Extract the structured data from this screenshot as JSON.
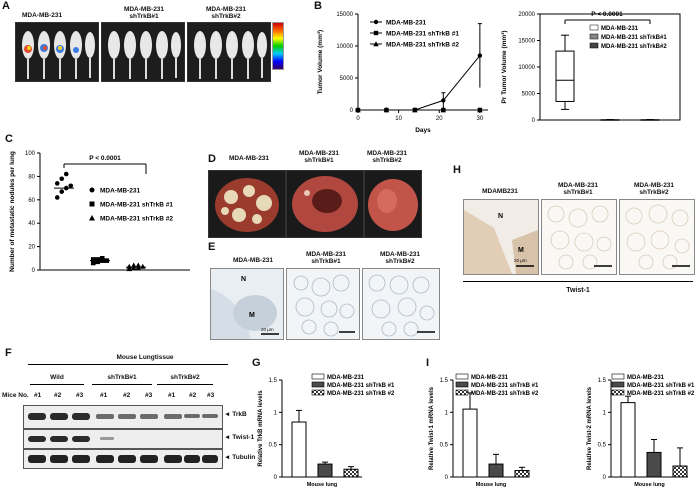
{
  "panels": {
    "A": {
      "letter": "A",
      "groups": [
        "MDA-MB-231",
        "MDA-MB-231 shTrkB#1",
        "MDA-MB-231 shTrkB#2"
      ]
    },
    "B": {
      "letter": "B"
    },
    "C": {
      "letter": "C"
    },
    "D": {
      "letter": "D",
      "groups": [
        "MDA-MB-231",
        "MDA-MB-231\nshTrkB#1",
        "MDA-MB-231\nshTrkB#2"
      ]
    },
    "E": {
      "letter": "E",
      "groups": [
        "MDA-MB-231",
        "MDA-MB-231\nshTrkB#1",
        "MDA-MB-231\nshTrkB#2"
      ],
      "labels": {
        "N": "N",
        "M": "M",
        "scale": "20 μm"
      }
    },
    "F": {
      "letter": "F",
      "title": "Mouse Lungtissue",
      "mice_label": "Mice No.",
      "groups": [
        "Wild",
        "shTrkB#1",
        "shTrkB#2"
      ],
      "mice": [
        "#1",
        "#2",
        "#3",
        "#1",
        "#2",
        "#3",
        "#1",
        "#2",
        "#3"
      ],
      "bands": [
        "TrkB",
        "Twist-1",
        "Tubulin"
      ]
    },
    "G": {
      "letter": "G"
    },
    "H": {
      "letter": "H",
      "groups": [
        "MDAMB231",
        "MDA-MB-231\nshTrkB#1",
        "MDA-MB-231\nshTrkB#2"
      ],
      "labels": {
        "N": "N",
        "M": "M",
        "scale": "20 μm"
      },
      "caption": "Twist-1"
    },
    "I": {
      "letter": "I"
    }
  },
  "chart_data": [
    {
      "id": "B-left",
      "type": "line",
      "xlabel": "Days",
      "ylabel": "Tumor Volume (mm³)",
      "x": [
        0,
        7,
        14,
        21,
        30
      ],
      "xticks": [
        0,
        10,
        20,
        30
      ],
      "yticks": [
        0,
        5000,
        10000,
        15000
      ],
      "xlim": [
        0,
        32
      ],
      "ylim": [
        0,
        15000
      ],
      "series": [
        {
          "name": "MDA-MB-231",
          "marker": "circle",
          "values": [
            0,
            0,
            0,
            1500,
            8500
          ],
          "err": [
            0,
            0,
            0,
            1200,
            5000
          ]
        },
        {
          "name": "MDA-MB-231 shTrkB #1",
          "marker": "square",
          "values": [
            0,
            0,
            0,
            0,
            0
          ]
        },
        {
          "name": "MDA-MB-231 shTrkB #2",
          "marker": "triangle",
          "values": [
            0,
            0,
            0,
            0,
            0
          ]
        }
      ]
    },
    {
      "id": "B-right",
      "type": "box",
      "ylabel": "Pr Tumor Volume (mm³)",
      "annotation": "P < 0.0001",
      "yticks": [
        0,
        5000,
        10000,
        15000,
        20000
      ],
      "ylim": [
        0,
        20000
      ],
      "series": [
        {
          "name": "MDA-MB-231",
          "min": 2000,
          "q1": 3500,
          "median": 7500,
          "q3": 13000,
          "max": 16000
        },
        {
          "name": "MDA-MB-231 shTrkB#1",
          "min": 0,
          "q1": 0,
          "median": 0,
          "q3": 50,
          "max": 80
        },
        {
          "name": "MDA-MB-231 shTrkB#2",
          "min": 0,
          "q1": 0,
          "median": 0,
          "q3": 50,
          "max": 80
        }
      ]
    },
    {
      "id": "C",
      "type": "scatter",
      "ylabel": "Number of metastatic nodules per lung",
      "annotation": "P < 0.0001",
      "yticks": [
        0,
        20,
        40,
        60,
        80,
        100
      ],
      "ylim": [
        0,
        100
      ],
      "series": [
        {
          "name": "MDA-MB-231",
          "marker": "circle",
          "points": [
            62,
            67,
            70,
            72,
            74,
            78,
            82
          ],
          "mean": 70
        },
        {
          "name": "MDA-MB-231 shTrkB #1",
          "marker": "square",
          "points": [
            6,
            7,
            8,
            8,
            9,
            9,
            10
          ],
          "mean": 8
        },
        {
          "name": "MDA-MB-231 shTrkB #2",
          "marker": "triangle",
          "points": [
            1,
            2,
            2,
            3,
            3,
            4,
            4
          ],
          "mean": 2.5
        }
      ]
    },
    {
      "id": "G",
      "type": "bar",
      "ylabel": "Relative TrkB mRNA levels",
      "xlabel": "Mouse lung",
      "yticks": [
        0,
        0.5,
        1,
        1.5
      ],
      "ylim": [
        0,
        1.5
      ],
      "series": [
        {
          "name": "MDA-MB-231",
          "value": 0.85,
          "err": 0.18,
          "fill": "#ffffff"
        },
        {
          "name": "MDA-MB-231 shTrkB #1",
          "value": 0.2,
          "err": 0.03,
          "fill": "#4a4a4a"
        },
        {
          "name": "MDA-MB-231 shTrkB #2",
          "value": 0.12,
          "err": 0.04,
          "fill": "checker"
        }
      ]
    },
    {
      "id": "I-left",
      "type": "bar",
      "ylabel": "Relative Twist-1 mRNA levels",
      "xlabel": "Mouse lung",
      "yticks": [
        0,
        0.5,
        1,
        1.5
      ],
      "ylim": [
        0,
        1.5
      ],
      "series": [
        {
          "name": "MDA-MB-231",
          "value": 1.05,
          "err": 0.25,
          "fill": "#ffffff"
        },
        {
          "name": "MDA-MB-231 shTrkB #1",
          "value": 0.2,
          "err": 0.15,
          "fill": "#4a4a4a"
        },
        {
          "name": "MDA-MB-231 shTrkB #2",
          "value": 0.1,
          "err": 0.05,
          "fill": "checker"
        }
      ]
    },
    {
      "id": "I-right",
      "type": "bar",
      "ylabel": "Relative Twist-2 mRNA levels",
      "xlabel": "Mouse lung",
      "yticks": [
        0,
        0.5,
        1,
        1.5
      ],
      "ylim": [
        0,
        1.5
      ],
      "series": [
        {
          "name": "MDA-MB-231",
          "value": 1.15,
          "err": 0.1,
          "fill": "#ffffff"
        },
        {
          "name": "MDA-MB-231 shTrkB #1",
          "value": 0.38,
          "err": 0.2,
          "fill": "#4a4a4a"
        },
        {
          "name": "MDA-MB-231 shTrkB #2",
          "value": 0.17,
          "err": 0.28,
          "fill": "checker"
        }
      ]
    }
  ]
}
